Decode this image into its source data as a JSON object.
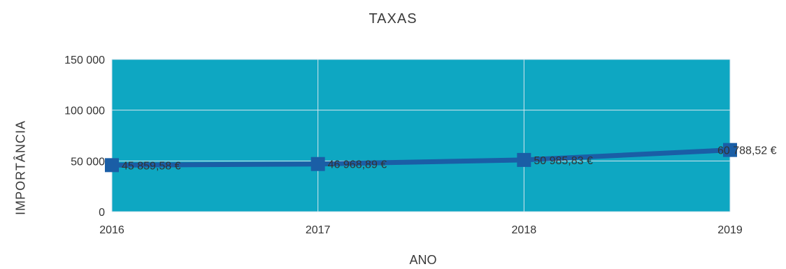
{
  "chart_data": {
    "type": "line",
    "title": "TAXAS",
    "xlabel": "ANO",
    "ylabel": "IMPORTÂNCIA",
    "categories": [
      "2016",
      "2017",
      "2018",
      "2019"
    ],
    "ylim": [
      0,
      150000
    ],
    "yticks": [
      0,
      50000,
      100000,
      150000
    ],
    "ytick_labels": [
      "0",
      "50 000",
      "100 000",
      "150 000"
    ],
    "series": [
      {
        "values": [
          45859.58,
          46968.89,
          50985.83,
          60788.52
        ],
        "data_labels": [
          "45 859,58 €",
          "46 968,89 €",
          "50 985,83 €",
          "60 788,52 €"
        ]
      }
    ],
    "grid": true,
    "colors": {
      "plot_background": "#0ea7c2",
      "line": "#1a5ea6",
      "marker": "#1a5ea6",
      "grid": "#d8e6ee",
      "tick_text": "#333333"
    }
  }
}
